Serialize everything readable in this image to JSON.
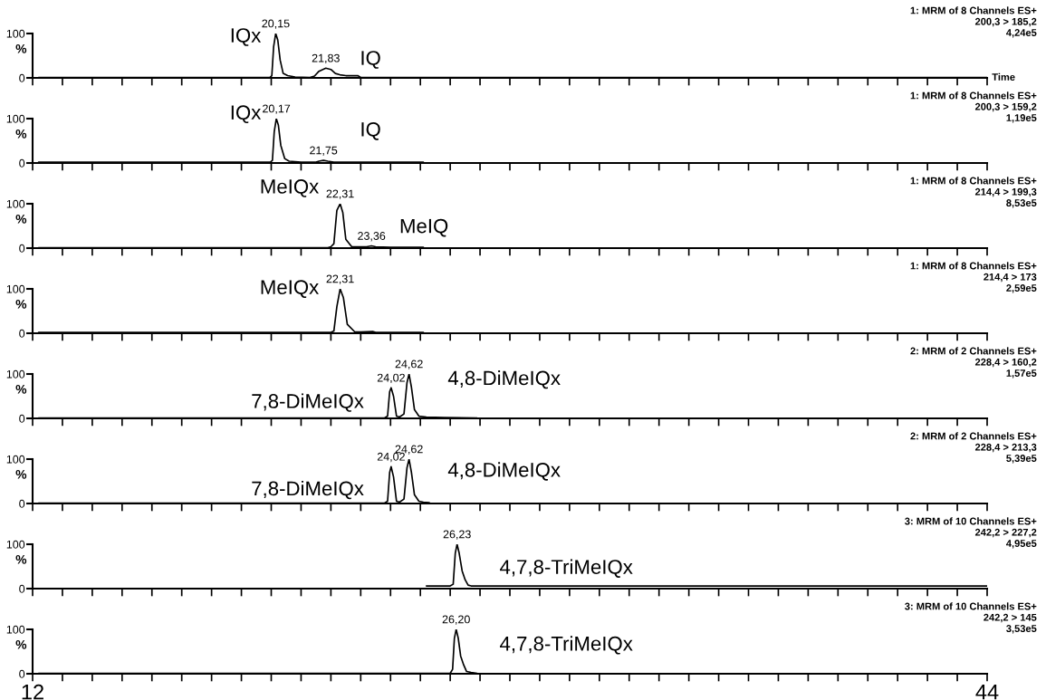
{
  "chart_data": [
    {
      "type": "line",
      "xlabel": "Time",
      "ylabel": "%",
      "tick_labels": "y",
      "xlim": [
        12,
        44
      ],
      "ylim": [
        0,
        100
      ],
      "yticks": [
        0,
        100
      ],
      "xticks": [
        12,
        {
          "value": 13,
          "label": null
        },
        {
          "value": 14,
          "label": null
        },
        {
          "value": 15,
          "label": null
        },
        {
          "value": 16,
          "label": null
        },
        {
          "value": 17,
          "label": null
        },
        {
          "value": 18,
          "label": null
        },
        {
          "value": 19,
          "label": null
        },
        {
          "value": 20,
          "label": null
        },
        {
          "value": 21,
          "label": null
        },
        {
          "value": 22,
          "label": null
        },
        {
          "value": 23,
          "label": null
        },
        {
          "value": 24,
          "label": null
        },
        {
          "value": 25,
          "label": null
        },
        {
          "value": 26,
          "label": null
        },
        {
          "value": 27,
          "label": null
        },
        {
          "value": 28,
          "label": null
        },
        {
          "value": 29,
          "label": null
        },
        {
          "value": 30,
          "label": null
        },
        {
          "value": 31,
          "label": null
        },
        {
          "value": 32,
          "label": null
        },
        {
          "value": 33,
          "label": null
        },
        {
          "value": 34,
          "label": null
        },
        {
          "value": 35,
          "label": null
        },
        {
          "value": 36,
          "label": null
        },
        {
          "value": 37,
          "label": null
        },
        {
          "value": 38,
          "label": null
        },
        {
          "value": 39,
          "label": null
        },
        {
          "value": 40,
          "label": null
        },
        {
          "value": 41,
          "label": null
        },
        {
          "value": 42,
          "label": null
        },
        {
          "value": 43,
          "label": null
        },
        44
      ],
      "series": [
        {
          "color": "#000000",
          "x": [
            12.2,
            19.95,
            20.02,
            20.08,
            20.15,
            20.22,
            20.3,
            20.4,
            20.55,
            20.8,
            21.3,
            21.45,
            21.6,
            21.83,
            22.0,
            22.15,
            22.3,
            22.5,
            22.9,
            23.0,
            44
          ],
          "values": [
            1,
            1,
            5,
            70,
            100,
            85,
            40,
            10,
            5,
            2,
            1,
            4,
            15,
            22,
            19,
            10,
            7,
            5,
            5,
            1,
            1
          ]
        }
      ],
      "annotations": [
        "1: MRM of 8 Channels ES+",
        "200,3 > 185,2",
        "4,24e5",
        {
          "text": "20,15",
          "x": 20.15,
          "y": 100
        },
        {
          "text": "21,83",
          "x": 21.83,
          "y": 22
        },
        "IQx",
        "IQ"
      ]
    },
    {
      "type": "line",
      "ylabel": "%",
      "tick_labels": "y",
      "xlim": [
        12,
        44
      ],
      "ylim": [
        0,
        100
      ],
      "yticks": [
        0,
        100
      ],
      "xticks": [
        12,
        {
          "value": 13,
          "label": null
        },
        {
          "value": 14,
          "label": null
        },
        {
          "value": 15,
          "label": null
        },
        {
          "value": 16,
          "label": null
        },
        {
          "value": 17,
          "label": null
        },
        {
          "value": 18,
          "label": null
        },
        {
          "value": 19,
          "label": null
        },
        {
          "value": 20,
          "label": null
        },
        {
          "value": 21,
          "label": null
        },
        {
          "value": 22,
          "label": null
        },
        {
          "value": 23,
          "label": null
        },
        {
          "value": 24,
          "label": null
        },
        {
          "value": 25,
          "label": null
        },
        {
          "value": 26,
          "label": null
        },
        {
          "value": 27,
          "label": null
        },
        {
          "value": 28,
          "label": null
        },
        {
          "value": 29,
          "label": null
        },
        {
          "value": 30,
          "label": null
        },
        {
          "value": 31,
          "label": null
        },
        {
          "value": 32,
          "label": null
        },
        {
          "value": 33,
          "label": null
        },
        {
          "value": 34,
          "label": null
        },
        {
          "value": 35,
          "label": null
        },
        {
          "value": 36,
          "label": null
        },
        {
          "value": 37,
          "label": null
        },
        {
          "value": 38,
          "label": null
        },
        {
          "value": 39,
          "label": null
        },
        {
          "value": 40,
          "label": null
        },
        {
          "value": 41,
          "label": null
        },
        {
          "value": 42,
          "label": null
        },
        {
          "value": 43,
          "label": null
        },
        44
      ],
      "series": [
        {
          "color": "#000000",
          "x": [
            12.2,
            19.97,
            20.04,
            20.1,
            20.17,
            20.24,
            20.32,
            20.45,
            20.6,
            21.0,
            21.5,
            21.6,
            21.75,
            21.9,
            22.1,
            25.1
          ],
          "values": [
            2,
            2,
            6,
            70,
            100,
            85,
            40,
            10,
            4,
            2,
            2,
            4,
            6,
            4,
            2,
            2
          ]
        }
      ],
      "annotations": [
        "1: MRM of 8 Channels ES+",
        "200,3 > 159,2",
        "1,19e5",
        {
          "text": "20,17",
          "x": 20.17,
          "y": 100
        },
        {
          "text": "21,75",
          "x": 21.75,
          "y": 6
        },
        "IQx",
        "IQ"
      ]
    },
    {
      "type": "line",
      "ylabel": "%",
      "tick_labels": "y",
      "xlim": [
        12,
        44
      ],
      "ylim": [
        0,
        100
      ],
      "yticks": [
        0,
        100
      ],
      "xticks": [
        12,
        {
          "value": 13,
          "label": null
        },
        {
          "value": 14,
          "label": null
        },
        {
          "value": 15,
          "label": null
        },
        {
          "value": 16,
          "label": null
        },
        {
          "value": 17,
          "label": null
        },
        {
          "value": 18,
          "label": null
        },
        {
          "value": 19,
          "label": null
        },
        {
          "value": 20,
          "label": null
        },
        {
          "value": 21,
          "label": null
        },
        {
          "value": 22,
          "label": null
        },
        {
          "value": 23,
          "label": null
        },
        {
          "value": 24,
          "label": null
        },
        {
          "value": 25,
          "label": null
        },
        {
          "value": 26,
          "label": null
        },
        {
          "value": 27,
          "label": null
        },
        {
          "value": 28,
          "label": null
        },
        {
          "value": 29,
          "label": null
        },
        {
          "value": 30,
          "label": null
        },
        {
          "value": 31,
          "label": null
        },
        {
          "value": 32,
          "label": null
        },
        {
          "value": 33,
          "label": null
        },
        {
          "value": 34,
          "label": null
        },
        {
          "value": 35,
          "label": null
        },
        {
          "value": 36,
          "label": null
        },
        {
          "value": 37,
          "label": null
        },
        {
          "value": 38,
          "label": null
        },
        {
          "value": 39,
          "label": null
        },
        {
          "value": 40,
          "label": null
        },
        {
          "value": 41,
          "label": null
        },
        {
          "value": 42,
          "label": null
        },
        {
          "value": 43,
          "label": null
        },
        44
      ],
      "series": [
        {
          "color": "#000000",
          "x": [
            12.2,
            21.9,
            22.0,
            22.1,
            22.2,
            22.31,
            22.4,
            22.5,
            22.7,
            23.0,
            23.2,
            23.36,
            23.5,
            24.0,
            25.1
          ],
          "values": [
            1,
            1,
            3,
            10,
            85,
            100,
            80,
            20,
            3,
            3,
            3,
            5,
            3,
            2,
            2
          ]
        }
      ],
      "annotations": [
        "1: MRM of 8 Channels ES+",
        "214,4 > 199,3",
        "8,53e5",
        {
          "text": "22,31",
          "x": 22.31,
          "y": 100
        },
        {
          "text": "23,36",
          "x": 23.36,
          "y": 5
        },
        "MeIQx",
        "MeIQ"
      ]
    },
    {
      "type": "line",
      "ylabel": "%",
      "tick_labels": "y",
      "xlim": [
        12,
        44
      ],
      "ylim": [
        0,
        100
      ],
      "yticks": [
        0,
        100
      ],
      "xticks": [
        12,
        {
          "value": 13,
          "label": null
        },
        {
          "value": 14,
          "label": null
        },
        {
          "value": 15,
          "label": null
        },
        {
          "value": 16,
          "label": null
        },
        {
          "value": 17,
          "label": null
        },
        {
          "value": 18,
          "label": null
        },
        {
          "value": 19,
          "label": null
        },
        {
          "value": 20,
          "label": null
        },
        {
          "value": 21,
          "label": null
        },
        {
          "value": 22,
          "label": null
        },
        {
          "value": 23,
          "label": null
        },
        {
          "value": 24,
          "label": null
        },
        {
          "value": 25,
          "label": null
        },
        {
          "value": 26,
          "label": null
        },
        {
          "value": 27,
          "label": null
        },
        {
          "value": 28,
          "label": null
        },
        {
          "value": 29,
          "label": null
        },
        {
          "value": 30,
          "label": null
        },
        {
          "value": 31,
          "label": null
        },
        {
          "value": 32,
          "label": null
        },
        {
          "value": 33,
          "label": null
        },
        {
          "value": 34,
          "label": null
        },
        {
          "value": 35,
          "label": null
        },
        {
          "value": 36,
          "label": null
        },
        {
          "value": 37,
          "label": null
        },
        {
          "value": 38,
          "label": null
        },
        {
          "value": 39,
          "label": null
        },
        {
          "value": 40,
          "label": null
        },
        {
          "value": 41,
          "label": null
        },
        {
          "value": 42,
          "label": null
        },
        {
          "value": 43,
          "label": null
        },
        44
      ],
      "series": [
        {
          "color": "#000000",
          "x": [
            12.2,
            22.0,
            22.1,
            22.2,
            22.31,
            22.42,
            22.55,
            22.8,
            23.0,
            23.4,
            23.5,
            25.1
          ],
          "values": [
            2,
            2,
            5,
            60,
            100,
            80,
            20,
            3,
            3,
            4,
            2,
            2
          ]
        }
      ],
      "annotations": [
        "1: MRM of 8 Channels ES+",
        "214,4 > 173",
        "2,59e5",
        {
          "text": "22,31",
          "x": 22.31,
          "y": 100
        },
        "MeIQx"
      ]
    },
    {
      "type": "line",
      "ylabel": "%",
      "tick_labels": "y",
      "xlim": [
        12,
        44
      ],
      "ylim": [
        0,
        100
      ],
      "yticks": [
        0,
        100
      ],
      "xticks": [
        12,
        {
          "value": 13,
          "label": null
        },
        {
          "value": 14,
          "label": null
        },
        {
          "value": 15,
          "label": null
        },
        {
          "value": 16,
          "label": null
        },
        {
          "value": 17,
          "label": null
        },
        {
          "value": 18,
          "label": null
        },
        {
          "value": 19,
          "label": null
        },
        {
          "value": 20,
          "label": null
        },
        {
          "value": 21,
          "label": null
        },
        {
          "value": 22,
          "label": null
        },
        {
          "value": 23,
          "label": null
        },
        {
          "value": 24,
          "label": null
        },
        {
          "value": 25,
          "label": null
        },
        {
          "value": 26,
          "label": null
        },
        {
          "value": 27,
          "label": null
        },
        {
          "value": 28,
          "label": null
        },
        {
          "value": 29,
          "label": null
        },
        {
          "value": 30,
          "label": null
        },
        {
          "value": 31,
          "label": null
        },
        {
          "value": 32,
          "label": null
        },
        {
          "value": 33,
          "label": null
        },
        {
          "value": 34,
          "label": null
        },
        {
          "value": 35,
          "label": null
        },
        {
          "value": 36,
          "label": null
        },
        {
          "value": 37,
          "label": null
        },
        {
          "value": 38,
          "label": null
        },
        {
          "value": 39,
          "label": null
        },
        {
          "value": 40,
          "label": null
        },
        {
          "value": 41,
          "label": null
        },
        {
          "value": 42,
          "label": null
        },
        {
          "value": 43,
          "label": null
        },
        44
      ],
      "series": [
        {
          "color": "#000000",
          "x": [
            12.2,
            23.8,
            23.9,
            23.97,
            24.02,
            24.1,
            24.2,
            24.3,
            24.45,
            24.55,
            24.62,
            24.7,
            24.8,
            24.95,
            25.2,
            25.8,
            26.9
          ],
          "values": [
            1,
            1,
            5,
            60,
            69,
            50,
            5,
            3,
            10,
            80,
            100,
            70,
            20,
            5,
            3,
            2,
            1
          ]
        }
      ],
      "annotations": [
        "2: MRM of 2 Channels ES+",
        "228,4 > 160,2",
        "1,57e5",
        {
          "text": "24,02",
          "x": 24.02,
          "y": 69
        },
        {
          "text": "24,62",
          "x": 24.62,
          "y": 100
        },
        "7,8-DiMeIQx",
        "4,8-DiMeIQx"
      ]
    },
    {
      "type": "line",
      "ylabel": "%",
      "tick_labels": "y",
      "xlim": [
        12,
        44
      ],
      "ylim": [
        0,
        100
      ],
      "yticks": [
        0,
        100
      ],
      "xticks": [
        12,
        {
          "value": 13,
          "label": null
        },
        {
          "value": 14,
          "label": null
        },
        {
          "value": 15,
          "label": null
        },
        {
          "value": 16,
          "label": null
        },
        {
          "value": 17,
          "label": null
        },
        {
          "value": 18,
          "label": null
        },
        {
          "value": 19,
          "label": null
        },
        {
          "value": 20,
          "label": null
        },
        {
          "value": 21,
          "label": null
        },
        {
          "value": 22,
          "label": null
        },
        {
          "value": 23,
          "label": null
        },
        {
          "value": 24,
          "label": null
        },
        {
          "value": 25,
          "label": null
        },
        {
          "value": 26,
          "label": null
        },
        {
          "value": 27,
          "label": null
        },
        {
          "value": 28,
          "label": null
        },
        {
          "value": 29,
          "label": null
        },
        {
          "value": 30,
          "label": null
        },
        {
          "value": 31,
          "label": null
        },
        {
          "value": 32,
          "label": null
        },
        {
          "value": 33,
          "label": null
        },
        {
          "value": 34,
          "label": null
        },
        {
          "value": 35,
          "label": null
        },
        {
          "value": 36,
          "label": null
        },
        {
          "value": 37,
          "label": null
        },
        {
          "value": 38,
          "label": null
        },
        {
          "value": 39,
          "label": null
        },
        {
          "value": 40,
          "label": null
        },
        {
          "value": 41,
          "label": null
        },
        {
          "value": 42,
          "label": null
        },
        {
          "value": 43,
          "label": null
        },
        44
      ],
      "series": [
        {
          "color": "#000000",
          "x": [
            12.2,
            23.8,
            23.9,
            23.97,
            24.02,
            24.1,
            24.2,
            24.3,
            24.45,
            24.55,
            24.62,
            24.7,
            24.8,
            24.95,
            25.1,
            25.3
          ],
          "values": [
            1,
            1,
            5,
            70,
            83,
            60,
            5,
            3,
            10,
            80,
            100,
            70,
            20,
            5,
            3,
            2
          ]
        }
      ],
      "annotations": [
        "2: MRM of 2 Channels ES+",
        "228,4 > 213,3",
        "5,39e5",
        {
          "text": "24,02",
          "x": 24.02,
          "y": 83
        },
        {
          "text": "24,62",
          "x": 24.62,
          "y": 100
        },
        "7,8-DiMeIQx",
        "4,8-DiMeIQx"
      ]
    },
    {
      "type": "line",
      "ylabel": "%",
      "tick_labels": "y",
      "xlim": [
        12,
        44
      ],
      "ylim": [
        0,
        100
      ],
      "yticks": [
        0,
        100
      ],
      "xticks": [
        12,
        {
          "value": 13,
          "label": null
        },
        {
          "value": 14,
          "label": null
        },
        {
          "value": 15,
          "label": null
        },
        {
          "value": 16,
          "label": null
        },
        {
          "value": 17,
          "label": null
        },
        {
          "value": 18,
          "label": null
        },
        {
          "value": 19,
          "label": null
        },
        {
          "value": 20,
          "label": null
        },
        {
          "value": 21,
          "label": null
        },
        {
          "value": 22,
          "label": null
        },
        {
          "value": 23,
          "label": null
        },
        {
          "value": 24,
          "label": null
        },
        {
          "value": 25,
          "label": null
        },
        {
          "value": 26,
          "label": null
        },
        {
          "value": 27,
          "label": null
        },
        {
          "value": 28,
          "label": null
        },
        {
          "value": 29,
          "label": null
        },
        {
          "value": 30,
          "label": null
        },
        {
          "value": 31,
          "label": null
        },
        {
          "value": 32,
          "label": null
        },
        {
          "value": 33,
          "label": null
        },
        {
          "value": 34,
          "label": null
        },
        {
          "value": 35,
          "label": null
        },
        {
          "value": 36,
          "label": null
        },
        {
          "value": 37,
          "label": null
        },
        {
          "value": 38,
          "label": null
        },
        {
          "value": 39,
          "label": null
        },
        {
          "value": 40,
          "label": null
        },
        {
          "value": 41,
          "label": null
        },
        {
          "value": 42,
          "label": null
        },
        {
          "value": 43,
          "label": null
        },
        44
      ],
      "series": [
        {
          "color": "#000000",
          "x": [
            25.2,
            26.0,
            26.1,
            26.17,
            26.23,
            26.3,
            26.4,
            26.5,
            26.6,
            26.7,
            44
          ],
          "values": [
            6,
            6,
            10,
            80,
            100,
            80,
            40,
            20,
            8,
            6,
            6
          ]
        }
      ],
      "annotations": [
        "3: MRM of 10 Channels ES+",
        "242,2 > 227,2",
        "4,95e5",
        {
          "text": "26,23",
          "x": 26.23,
          "y": 100
        },
        "4,7,8-TriMeIQx"
      ]
    },
    {
      "type": "line",
      "ylabel": "%",
      "xlim": [
        12,
        44
      ],
      "ylim": [
        0,
        100
      ],
      "yticks": [
        0,
        100
      ],
      "xticks": [
        12,
        {
          "value": 13,
          "label": null
        },
        {
          "value": 14,
          "label": null
        },
        {
          "value": 15,
          "label": null
        },
        {
          "value": 16,
          "label": null
        },
        {
          "value": 17,
          "label": null
        },
        {
          "value": 18,
          "label": null
        },
        {
          "value": 19,
          "label": null
        },
        {
          "value": 20,
          "label": null
        },
        {
          "value": 21,
          "label": null
        },
        {
          "value": 22,
          "label": null
        },
        {
          "value": 23,
          "label": null
        },
        {
          "value": 24,
          "label": null
        },
        {
          "value": 25,
          "label": null
        },
        {
          "value": 26,
          "label": null
        },
        {
          "value": 27,
          "label": null
        },
        {
          "value": 28,
          "label": null
        },
        {
          "value": 29,
          "label": null
        },
        {
          "value": 30,
          "label": null
        },
        {
          "value": 31,
          "label": null
        },
        {
          "value": 32,
          "label": null
        },
        {
          "value": 33,
          "label": null
        },
        {
          "value": 34,
          "label": null
        },
        {
          "value": 35,
          "label": null
        },
        {
          "value": 36,
          "label": null
        },
        {
          "value": 37,
          "label": null
        },
        {
          "value": 38,
          "label": null
        },
        {
          "value": 39,
          "label": null
        },
        {
          "value": 40,
          "label": null
        },
        {
          "value": 41,
          "label": null
        },
        {
          "value": 42,
          "label": null
        },
        {
          "value": 43,
          "label": null
        },
        44
      ],
      "series": [
        {
          "color": "#000000",
          "x": [
            12.2,
            26.0,
            26.08,
            26.14,
            26.2,
            26.27,
            26.35,
            26.45,
            26.55,
            26.7,
            26.9
          ],
          "values": [
            1,
            1,
            10,
            80,
            100,
            80,
            40,
            20,
            5,
            3,
            1
          ]
        }
      ],
      "annotations": [
        "3: MRM of 10 Channels ES+",
        "242,2 > 145",
        "3,53e5",
        {
          "text": "26,20",
          "x": 26.2,
          "y": 100
        },
        "4,7,8-TriMeIQx"
      ]
    }
  ]
}
